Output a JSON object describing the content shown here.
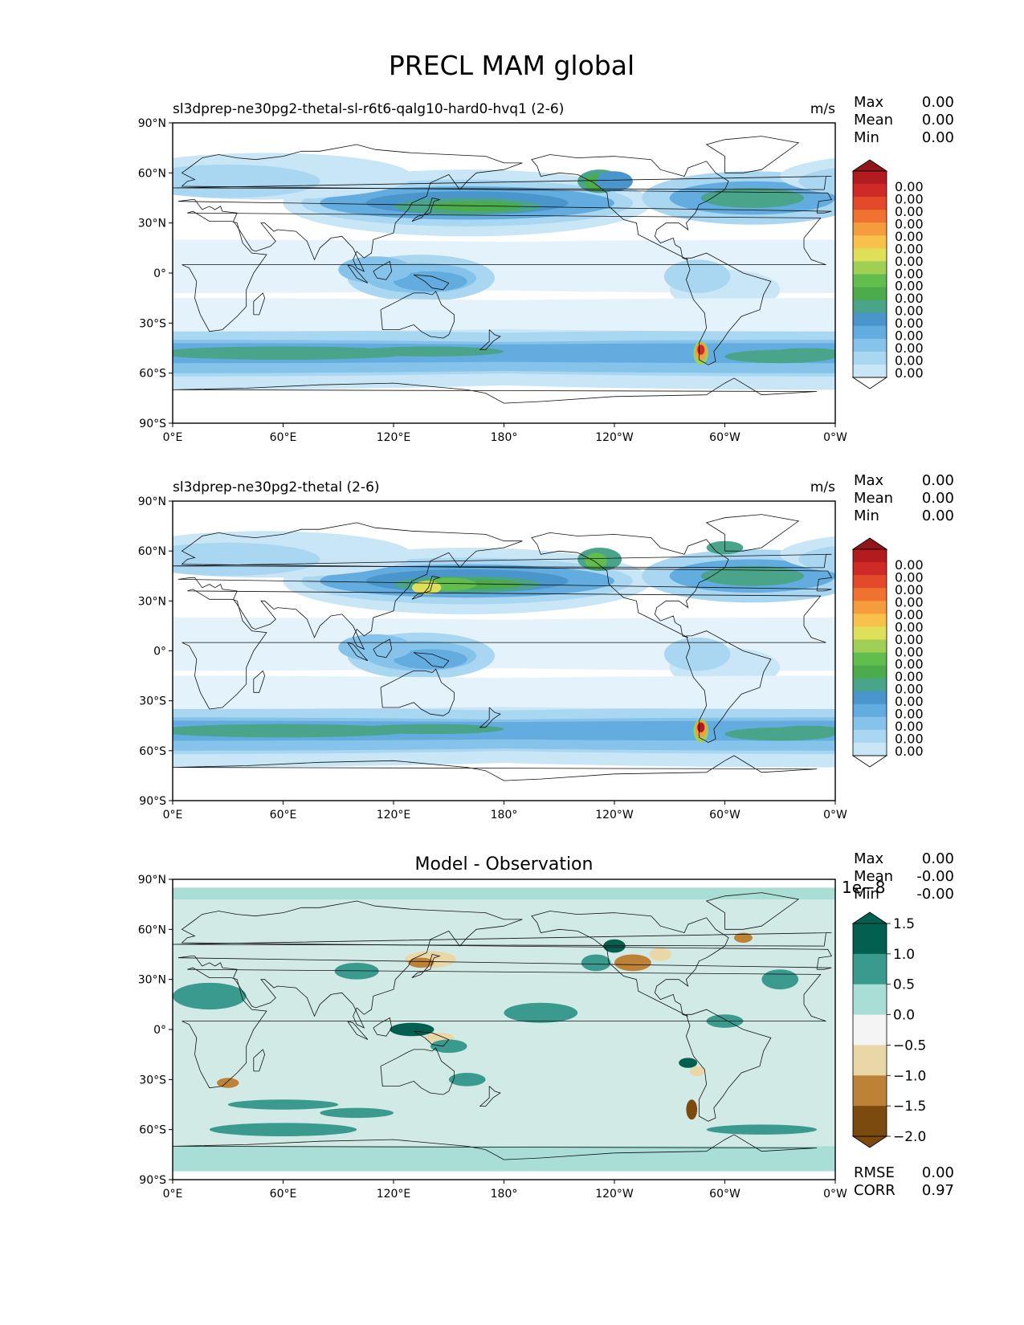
{
  "figure": {
    "title": "PRECL MAM global"
  },
  "colors": {
    "precip_levels": [
      "#ffffff",
      "#e4f3fb",
      "#c9e6f6",
      "#a9d6f1",
      "#86c3ea",
      "#62acdf",
      "#4a95cc",
      "#4aa48a",
      "#4cab4a",
      "#62be4c",
      "#9fcf55",
      "#dfe05a",
      "#f7c14c",
      "#f59c3c",
      "#ef7230",
      "#e34a2a",
      "#cf2b26",
      "#b31c1f",
      "#8f161a"
    ],
    "diff_levels": [
      "#7a4a0e",
      "#bd8236",
      "#ead7a7",
      "#f4f4f4",
      "#a9ded6",
      "#3a9a8e",
      "#035f4f"
    ],
    "coast": "#111111",
    "axis": "#000000"
  },
  "chart_data": [
    {
      "type": "heatmap",
      "panel": "test",
      "title": "sl3dprep-ne30pg2-thetal-sl-r6t6-qalg10-hard0-hvq1 (2-6)",
      "units": "m/s",
      "stats": [
        {
          "label": "Max",
          "value": "0.00"
        },
        {
          "label": "Mean",
          "value": "0.00"
        },
        {
          "label": "Min",
          "value": "0.00"
        }
      ],
      "xticks": [
        "0°E",
        "60°E",
        "120°E",
        "180°",
        "120°W",
        "60°W",
        "0°W"
      ],
      "yticks": [
        "90°N",
        "60°N",
        "30°N",
        "0°",
        "30°S",
        "60°S",
        "90°S"
      ],
      "xlim": [
        0,
        360
      ],
      "ylim": [
        -90,
        90
      ],
      "colorbar": {
        "ticks": [
          "0.00",
          "0.00",
          "0.00",
          "0.00",
          "0.00",
          "0.00",
          "0.00",
          "0.00",
          "0.00",
          "0.00",
          "0.00",
          "0.00",
          "0.00",
          "0.00",
          "0.00",
          "0.00"
        ],
        "extend": "both"
      }
    },
    {
      "type": "heatmap",
      "panel": "reference",
      "title": "sl3dprep-ne30pg2-thetal (2-6)",
      "units": "m/s",
      "stats": [
        {
          "label": "Max",
          "value": "0.00"
        },
        {
          "label": "Mean",
          "value": "0.00"
        },
        {
          "label": "Min",
          "value": "0.00"
        }
      ],
      "xticks": [
        "0°E",
        "60°E",
        "120°E",
        "180°",
        "120°W",
        "60°W",
        "0°W"
      ],
      "yticks": [
        "90°N",
        "60°N",
        "30°N",
        "0°",
        "30°S",
        "60°S",
        "90°S"
      ],
      "xlim": [
        0,
        360
      ],
      "ylim": [
        -90,
        90
      ],
      "colorbar": {
        "ticks": [
          "0.00",
          "0.00",
          "0.00",
          "0.00",
          "0.00",
          "0.00",
          "0.00",
          "0.00",
          "0.00",
          "0.00",
          "0.00",
          "0.00",
          "0.00",
          "0.00",
          "0.00",
          "0.00"
        ],
        "extend": "both"
      }
    },
    {
      "type": "heatmap",
      "panel": "difference",
      "title": "Model - Observation",
      "stats": [
        {
          "label": "Max",
          "value": "0.00"
        },
        {
          "label": "Mean",
          "value": "-0.00"
        },
        {
          "label": "Min",
          "value": "-0.00"
        }
      ],
      "xticks": [
        "0°E",
        "60°E",
        "120°E",
        "180°",
        "120°W",
        "60°W",
        "0°W"
      ],
      "yticks": [
        "90°N",
        "60°N",
        "30°N",
        "0°",
        "30°S",
        "60°S",
        "90°S"
      ],
      "xlim": [
        0,
        360
      ],
      "ylim": [
        -90,
        90
      ],
      "colorbar": {
        "scale_label": "1e−8",
        "ticks": [
          "1.5",
          "1.0",
          "0.5",
          "0.0",
          "−0.5",
          "−1.0",
          "−1.5",
          "−2.0"
        ],
        "extend": "both"
      },
      "metrics": [
        {
          "label": "RMSE",
          "value": "0.00"
        },
        {
          "label": "CORR",
          "value": "0.97"
        }
      ]
    }
  ]
}
